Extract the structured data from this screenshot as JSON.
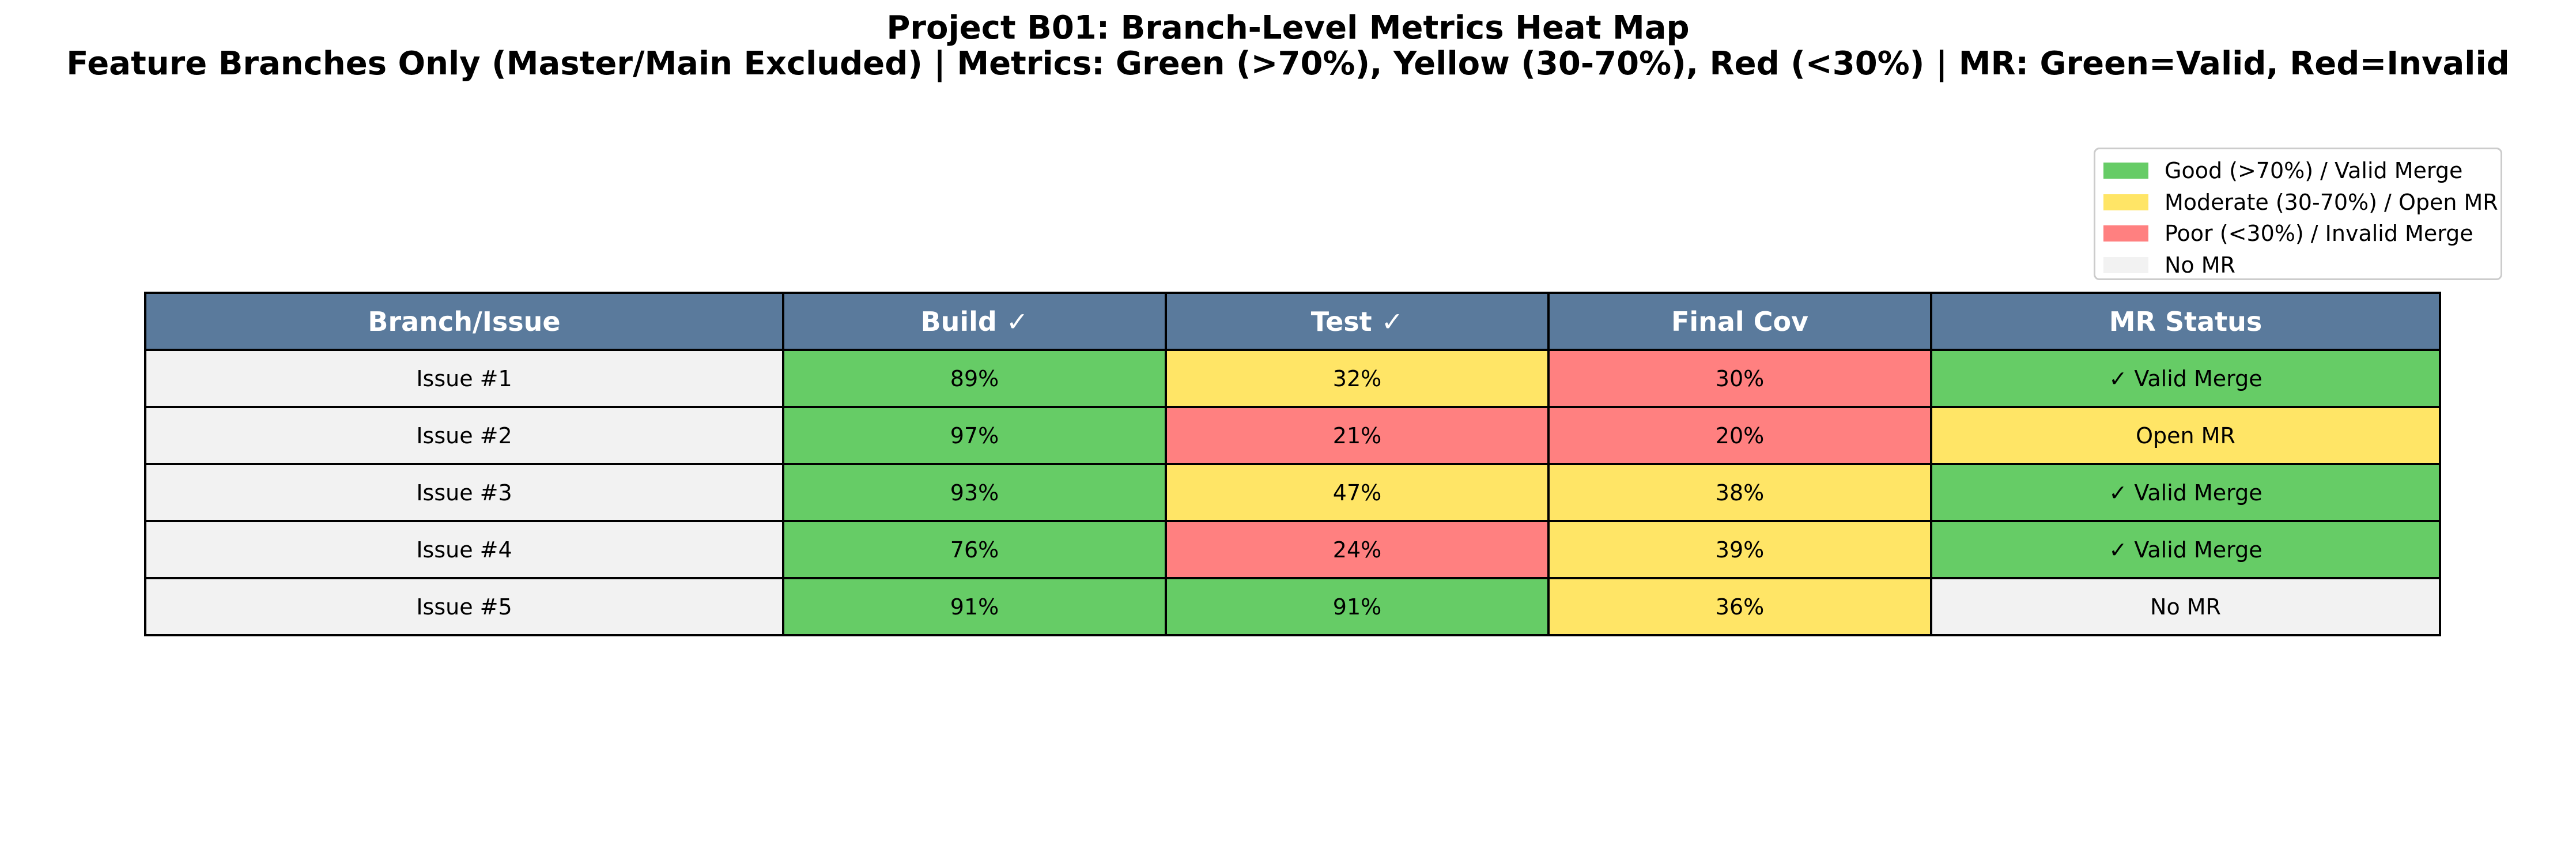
{
  "title_line1": "Project B01: Branch-Level Metrics Heat Map",
  "title_line2": "Feature Branches Only (Master/Main Excluded) | Metrics: Green (>70%), Yellow (30-70%), Red (<30%) | MR: Green=Valid, Red=Invalid",
  "colors": {
    "header_bg": "#5a7a9c",
    "green": "#66cc66",
    "yellow": "#ffe566",
    "red": "#ff8080",
    "neutral": "#f2f2f2"
  },
  "legend": [
    {
      "label": "Good (>70%) / Valid Merge",
      "color": "#66cc66"
    },
    {
      "label": "Moderate (30-70%) / Open MR",
      "color": "#ffe566"
    },
    {
      "label": "Poor (<30%) / Invalid Merge",
      "color": "#ff8080"
    },
    {
      "label": "No MR",
      "color": "#f2f2f2"
    }
  ],
  "chart_data": {
    "type": "table",
    "title": "Project B01: Branch-Level Metrics Heat Map",
    "subtitle": "Feature Branches Only (Master/Main Excluded) | Metrics: Green (>70%), Yellow (30-70%), Red (<30%) | MR: Green=Valid, Red=Invalid",
    "columns": [
      "Branch/Issue",
      "Build ✓",
      "Test ✓",
      "Final Cov",
      "MR Status"
    ],
    "rows": [
      {
        "branch": "Issue #1",
        "build": "89%",
        "test": "32%",
        "final_cov": "30%",
        "mr_status": "✓ Valid Merge"
      },
      {
        "branch": "Issue #2",
        "build": "97%",
        "test": "21%",
        "final_cov": "20%",
        "mr_status": "Open MR"
      },
      {
        "branch": "Issue #3",
        "build": "93%",
        "test": "47%",
        "final_cov": "38%",
        "mr_status": "✓ Valid Merge"
      },
      {
        "branch": "Issue #4",
        "build": "76%",
        "test": "24%",
        "final_cov": "39%",
        "mr_status": "✓ Valid Merge"
      },
      {
        "branch": "Issue #5",
        "build": "91%",
        "test": "91%",
        "final_cov": "36%",
        "mr_status": "No MR"
      }
    ],
    "cell_colors": [
      [
        "neutral",
        "green",
        "yellow",
        "red",
        "green"
      ],
      [
        "neutral",
        "green",
        "red",
        "red",
        "yellow"
      ],
      [
        "neutral",
        "green",
        "yellow",
        "yellow",
        "green"
      ],
      [
        "neutral",
        "green",
        "red",
        "yellow",
        "green"
      ],
      [
        "neutral",
        "green",
        "green",
        "yellow",
        "neutral"
      ]
    ],
    "legend_position": "top-right"
  }
}
